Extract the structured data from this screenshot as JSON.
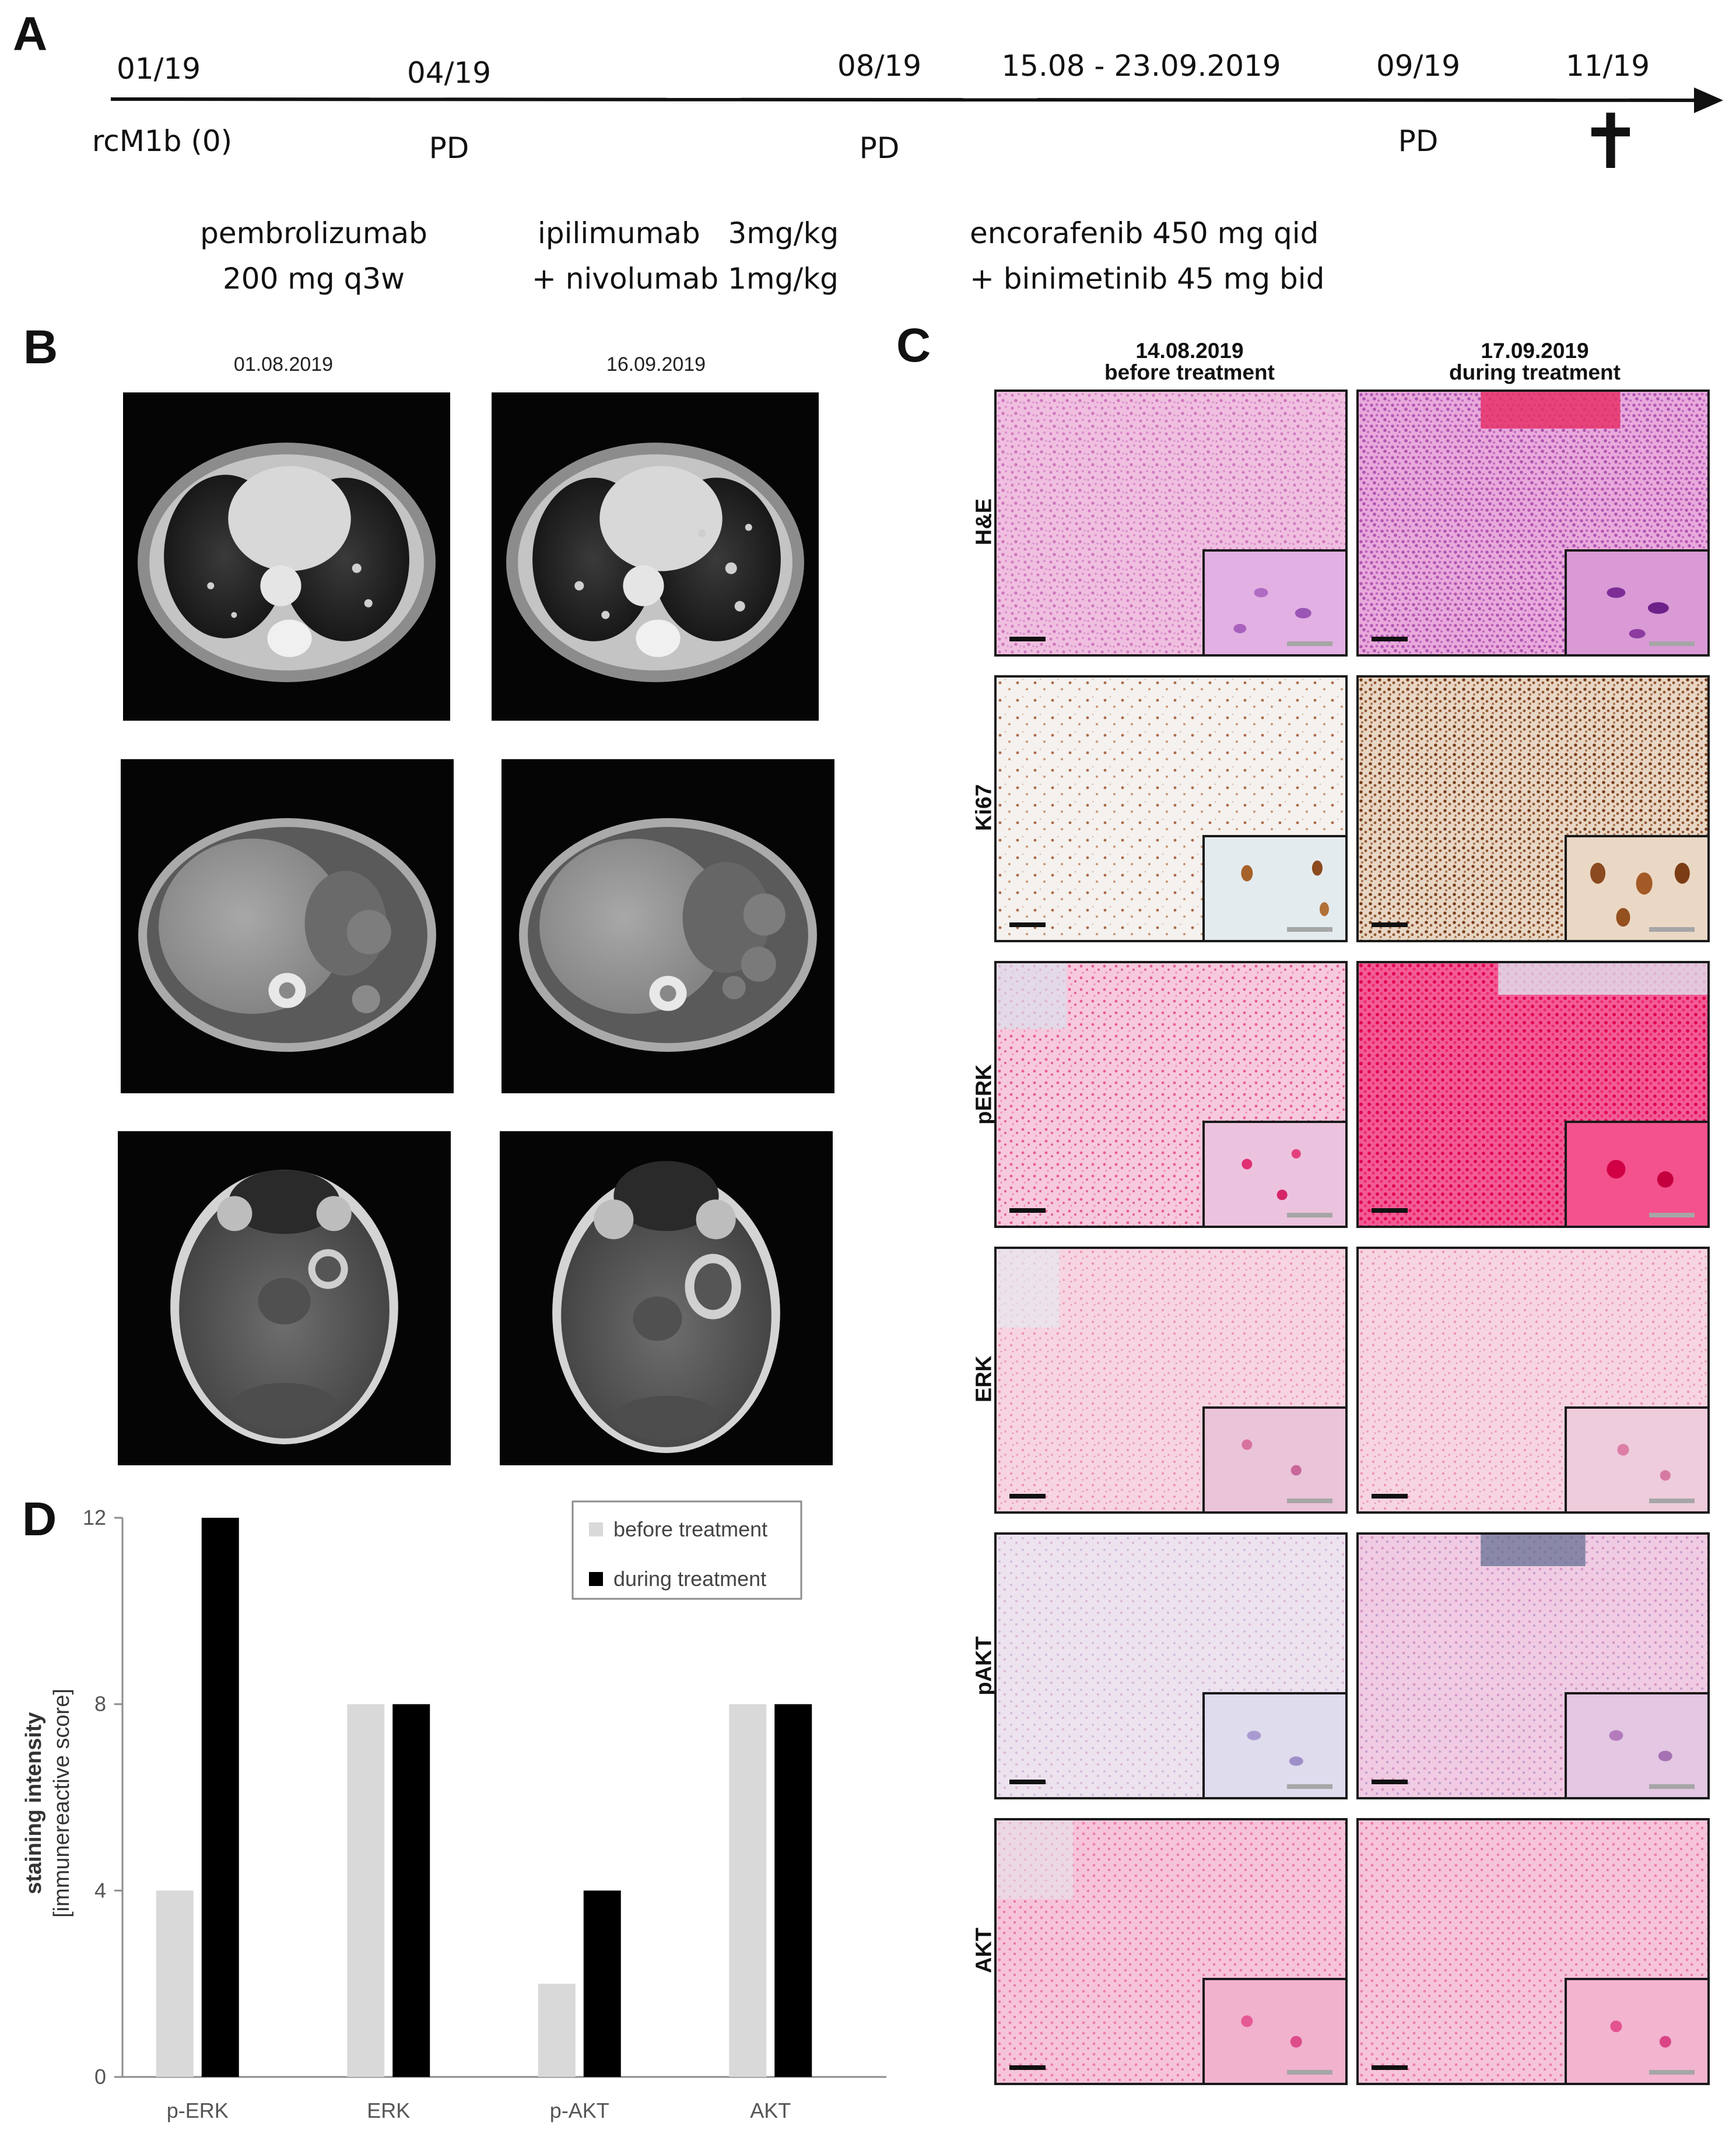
{
  "panels": {
    "a": "A",
    "b": "B",
    "c": "C",
    "d": "D"
  },
  "timeline": {
    "points": [
      {
        "date": "01/19",
        "event": "rcM1b (0)"
      },
      {
        "date": "04/19",
        "event": "PD"
      },
      {
        "date": "08/19",
        "event": "PD"
      },
      {
        "date": "15.08 - 23.09.2019",
        "event": ""
      },
      {
        "date": "09/19",
        "event": "PD"
      },
      {
        "date": "11/19",
        "event": "✝"
      }
    ],
    "therapies": [
      {
        "line1": "pembrolizumab",
        "line2": "200 mg q3w"
      },
      {
        "line1": "ipilimumab   3mg/kg",
        "line2": "+ nivolumab 1mg/kg"
      },
      {
        "line1": "encorafenib 450 mg qid",
        "line2": "+ binimetinib 45 mg bid"
      }
    ]
  },
  "imaging": {
    "dates": [
      "01.08.2019",
      "16.09.2019"
    ]
  },
  "histology": {
    "columns": [
      {
        "date": "14.08.2019",
        "label": "before treatment"
      },
      {
        "date": "17.09.2019",
        "label": "during treatment"
      }
    ],
    "stains": [
      "H&E",
      "Ki67",
      "pERK",
      "ERK",
      "pAKT",
      "AKT"
    ]
  },
  "chart_data": {
    "type": "bar",
    "categories": [
      "p-ERK",
      "ERK",
      "p-AKT",
      "AKT"
    ],
    "series": [
      {
        "name": "before treatment",
        "values": [
          4,
          8,
          2,
          8
        ],
        "color": "#d9d9d9"
      },
      {
        "name": "during treatment",
        "values": [
          12,
          8,
          4,
          8
        ],
        "color": "#000000"
      }
    ],
    "ylabel_line1": "staining intensity",
    "ylabel_line2": "[immunereactive score]",
    "yticks": [
      0,
      4,
      8,
      12
    ],
    "ylim": [
      0,
      12
    ],
    "grid": false,
    "legend_position": "top-right"
  }
}
